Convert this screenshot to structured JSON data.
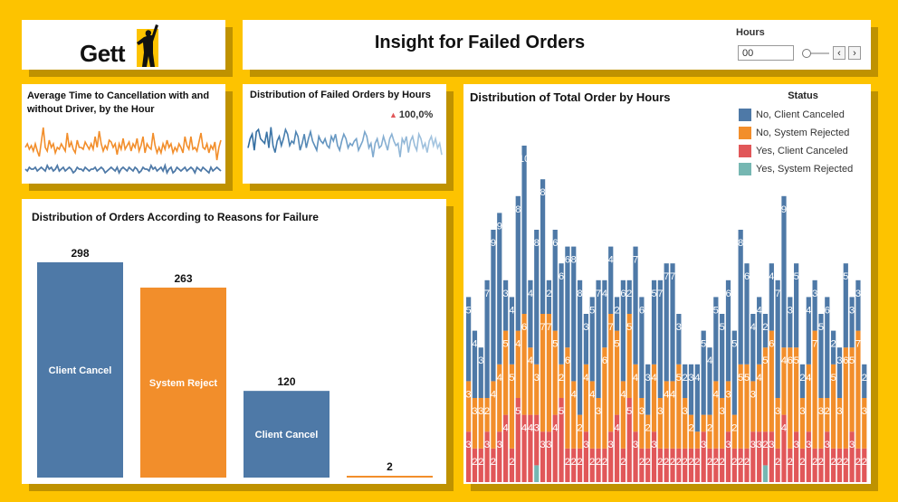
{
  "logo": {
    "text": "Gett"
  },
  "header": {
    "title": "Insight for Failed Orders",
    "hours_label": "Hours",
    "hours_value": "00"
  },
  "avg_panel": {
    "title": "Average Time to Cancellation with and without Driver, by the Hour",
    "series_orange": [
      16,
      18,
      15,
      17,
      14,
      18,
      14,
      11,
      19,
      27,
      16,
      14,
      20,
      16,
      18,
      13,
      16,
      15,
      18,
      16,
      14,
      24,
      16,
      19,
      15,
      13,
      20,
      16,
      16,
      15,
      19,
      17,
      15,
      18,
      15,
      22,
      16,
      25,
      18,
      14,
      17,
      15,
      20,
      19,
      16,
      18,
      12,
      18,
      15,
      21,
      15,
      17,
      19,
      14,
      18,
      16,
      21,
      14,
      17,
      22,
      13,
      18,
      16,
      15,
      24,
      17,
      13,
      16,
      13,
      18,
      15,
      20,
      16,
      18,
      13,
      16,
      14,
      18,
      16,
      13,
      22,
      17,
      15,
      22,
      15,
      16,
      14,
      19,
      24,
      16,
      15,
      18,
      13,
      17,
      15,
      19,
      9,
      16,
      20
    ],
    "series_blue": [
      4,
      3,
      5,
      4,
      4,
      5,
      3,
      4,
      5,
      4,
      3,
      6,
      4,
      5,
      3,
      4,
      6,
      3,
      4,
      5,
      3,
      4,
      5,
      4,
      2,
      3,
      5,
      4,
      4,
      3,
      5,
      4,
      3,
      4,
      4,
      5,
      3,
      4,
      5,
      4,
      2,
      3,
      4,
      5,
      4,
      3,
      5,
      2,
      4,
      5,
      4,
      3,
      5,
      4,
      3,
      5,
      4,
      2,
      3,
      5,
      4,
      4,
      3,
      6,
      4,
      5,
      3,
      4,
      5,
      3,
      6,
      2,
      4,
      5,
      2,
      3,
      5,
      4,
      3,
      4,
      5,
      3,
      4,
      5,
      4,
      2,
      5,
      4,
      3,
      5,
      4,
      3,
      2,
      5,
      3,
      4,
      5,
      4,
      3
    ]
  },
  "dist_hours_panel": {
    "title": "Distribution of Failed Orders by Hours",
    "kpi": "100,0%",
    "series": [
      10,
      14,
      16,
      9,
      17,
      18,
      14,
      13,
      12,
      17,
      10,
      19,
      11,
      8,
      13,
      15,
      11,
      14,
      18,
      16,
      11,
      13,
      12,
      17,
      15,
      9,
      12,
      16,
      10,
      14,
      17,
      13,
      11,
      9,
      15,
      13,
      12,
      14,
      11,
      10,
      15,
      13,
      16,
      11,
      9,
      13,
      16,
      14,
      10,
      12,
      11,
      13,
      14,
      9,
      11,
      13,
      17,
      15,
      10,
      12,
      6,
      12,
      14,
      10,
      11,
      15,
      12,
      9,
      14,
      16,
      13,
      11,
      12,
      6,
      14,
      12,
      15,
      8,
      13,
      15,
      11,
      9,
      16,
      14,
      10,
      12,
      8,
      13,
      15,
      11,
      14,
      10,
      12,
      7
    ]
  },
  "reasons_panel": {
    "title": "Distribution of Orders According to Reasons for Failure",
    "bars": [
      {
        "value": "298",
        "label": "Client Cancel",
        "color": "#4e79a7"
      },
      {
        "value": "263",
        "label": "System Reject",
        "color": "#f28e2b"
      },
      {
        "value": "120",
        "label": "Client Cancel",
        "color": "#4e79a7"
      },
      {
        "value": "2",
        "label": "",
        "color": "#f28e2b"
      }
    ]
  },
  "total_panel": {
    "title": "Distribution of Total Order by Hours",
    "legend_title": "Status",
    "legend": [
      {
        "label": "No, Client Canceled",
        "color": "#4e79a7"
      },
      {
        "label": "No, System Rejected",
        "color": "#f28e2b"
      },
      {
        "label": "Yes, Client Canceled",
        "color": "#e15759"
      },
      {
        "label": "Yes, System Rejected",
        "color": "#76b7b2"
      }
    ]
  },
  "chart_data": {
    "type": "bar",
    "stacked": true,
    "title": "Distribution of Total Order by Hours",
    "legend_position": "top-right",
    "series": [
      {
        "name": "No, Client Canceled",
        "values": [
          5,
          4,
          3,
          7,
          9,
          9,
          3,
          4,
          8,
          10,
          4,
          8,
          8,
          2,
          6,
          6,
          6,
          8,
          8,
          3,
          5,
          7,
          4,
          4,
          2,
          6,
          2,
          7,
          6,
          3,
          5,
          7,
          7,
          7,
          3,
          2,
          3,
          4,
          5,
          4,
          5,
          5,
          6,
          5,
          8,
          6,
          4,
          4,
          2,
          4,
          7,
          9,
          3,
          5,
          2,
          4,
          3,
          5,
          6,
          2,
          3,
          5,
          3,
          3,
          2
        ]
      },
      {
        "name": "No, System Rejected",
        "values": [
          3,
          3,
          3,
          2,
          4,
          4,
          5,
          5,
          4,
          6,
          4,
          3,
          7,
          7,
          5,
          2,
          6,
          4,
          2,
          4,
          4,
          3,
          6,
          7,
          5,
          4,
          5,
          4,
          3,
          2,
          4,
          3,
          4,
          4,
          5,
          3,
          2,
          1,
          1,
          2,
          4,
          3,
          3,
          2,
          5,
          5,
          3,
          4,
          5,
          6,
          3,
          4,
          6,
          5,
          3,
          4,
          7,
          3,
          2,
          5,
          3,
          6,
          5,
          7,
          3
        ]
      },
      {
        "name": "Yes, Client Canceled",
        "values": [
          3,
          2,
          2,
          3,
          2,
          3,
          4,
          2,
          5,
          4,
          4,
          3,
          3,
          3,
          4,
          5,
          2,
          2,
          2,
          3,
          2,
          2,
          2,
          3,
          4,
          2,
          5,
          3,
          2,
          2,
          3,
          2,
          2,
          2,
          2,
          2,
          2,
          2,
          3,
          2,
          2,
          2,
          3,
          2,
          2,
          2,
          3,
          3,
          2,
          3,
          2,
          4,
          2,
          3,
          2,
          3,
          2,
          2,
          3,
          2,
          2,
          2,
          3,
          2,
          2
        ]
      },
      {
        "name": "Yes, System Rejected",
        "values": [
          0,
          0,
          0,
          0,
          0,
          0,
          0,
          0,
          0,
          0,
          0,
          1,
          0,
          0,
          0,
          0,
          0,
          0,
          0,
          0,
          0,
          0,
          0,
          0,
          0,
          0,
          0,
          0,
          0,
          0,
          0,
          0,
          0,
          0,
          0,
          0,
          0,
          0,
          0,
          0,
          0,
          0,
          0,
          0,
          0,
          0,
          0,
          0,
          1,
          0,
          0,
          0,
          0,
          0,
          0,
          0,
          0,
          0,
          0,
          0,
          0,
          0,
          0,
          0,
          0
        ]
      }
    ]
  }
}
